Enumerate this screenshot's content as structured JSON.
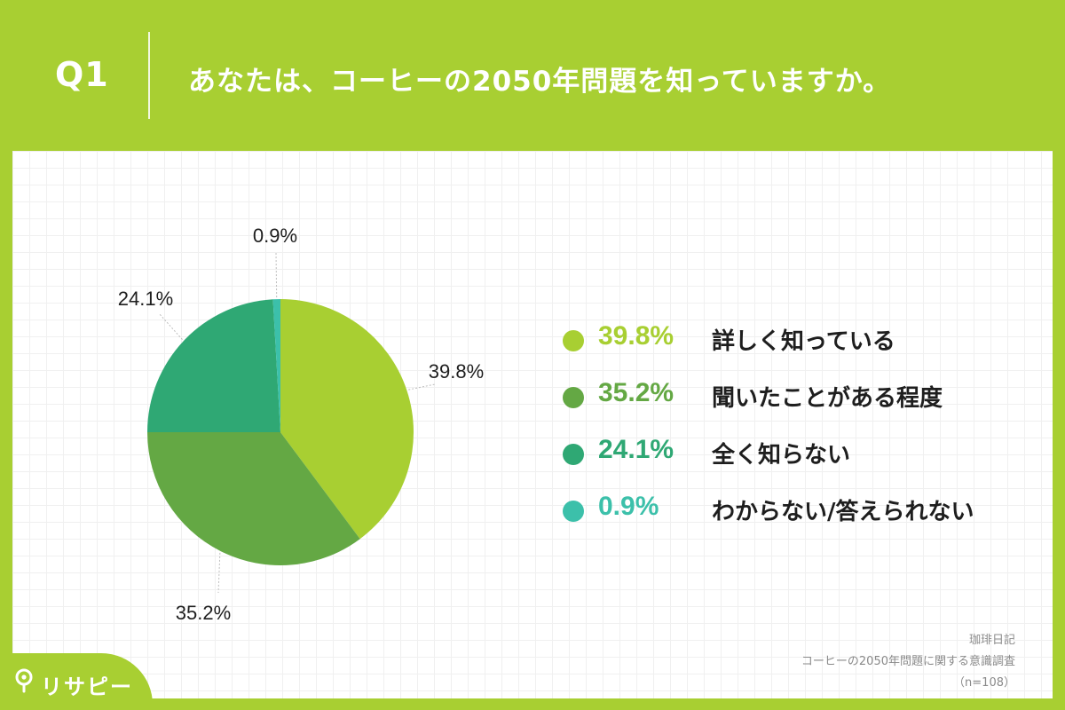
{
  "header": {
    "question_number": "Q1",
    "question_text": "あなたは、コーヒーの2050年問題を知っていますか。"
  },
  "chart_data": {
    "type": "pie",
    "categories": [
      "詳しく知っている",
      "聞いたことがある程度",
      "全く知らない",
      "わからない/答えられない"
    ],
    "values": [
      39.8,
      35.2,
      24.1,
      0.9
    ],
    "labels": [
      "39.8%",
      "35.2%",
      "24.1%",
      "0.9%"
    ],
    "colors": [
      "#a8cf32",
      "#64a844",
      "#2fa874",
      "#3cc0aa"
    ],
    "start_angle": "12 o'clock",
    "direction": "clockwise",
    "legend_placement": "right"
  },
  "source": {
    "line1": "珈琲日記",
    "line2": "コーヒーの2050年問題に関する意識調査",
    "line3": "（n=108）"
  },
  "brand": {
    "name": "リサピー",
    "icon": "magnifier-pin-icon"
  },
  "colors": {
    "background": "#a8cf32",
    "card": "#ffffff"
  }
}
